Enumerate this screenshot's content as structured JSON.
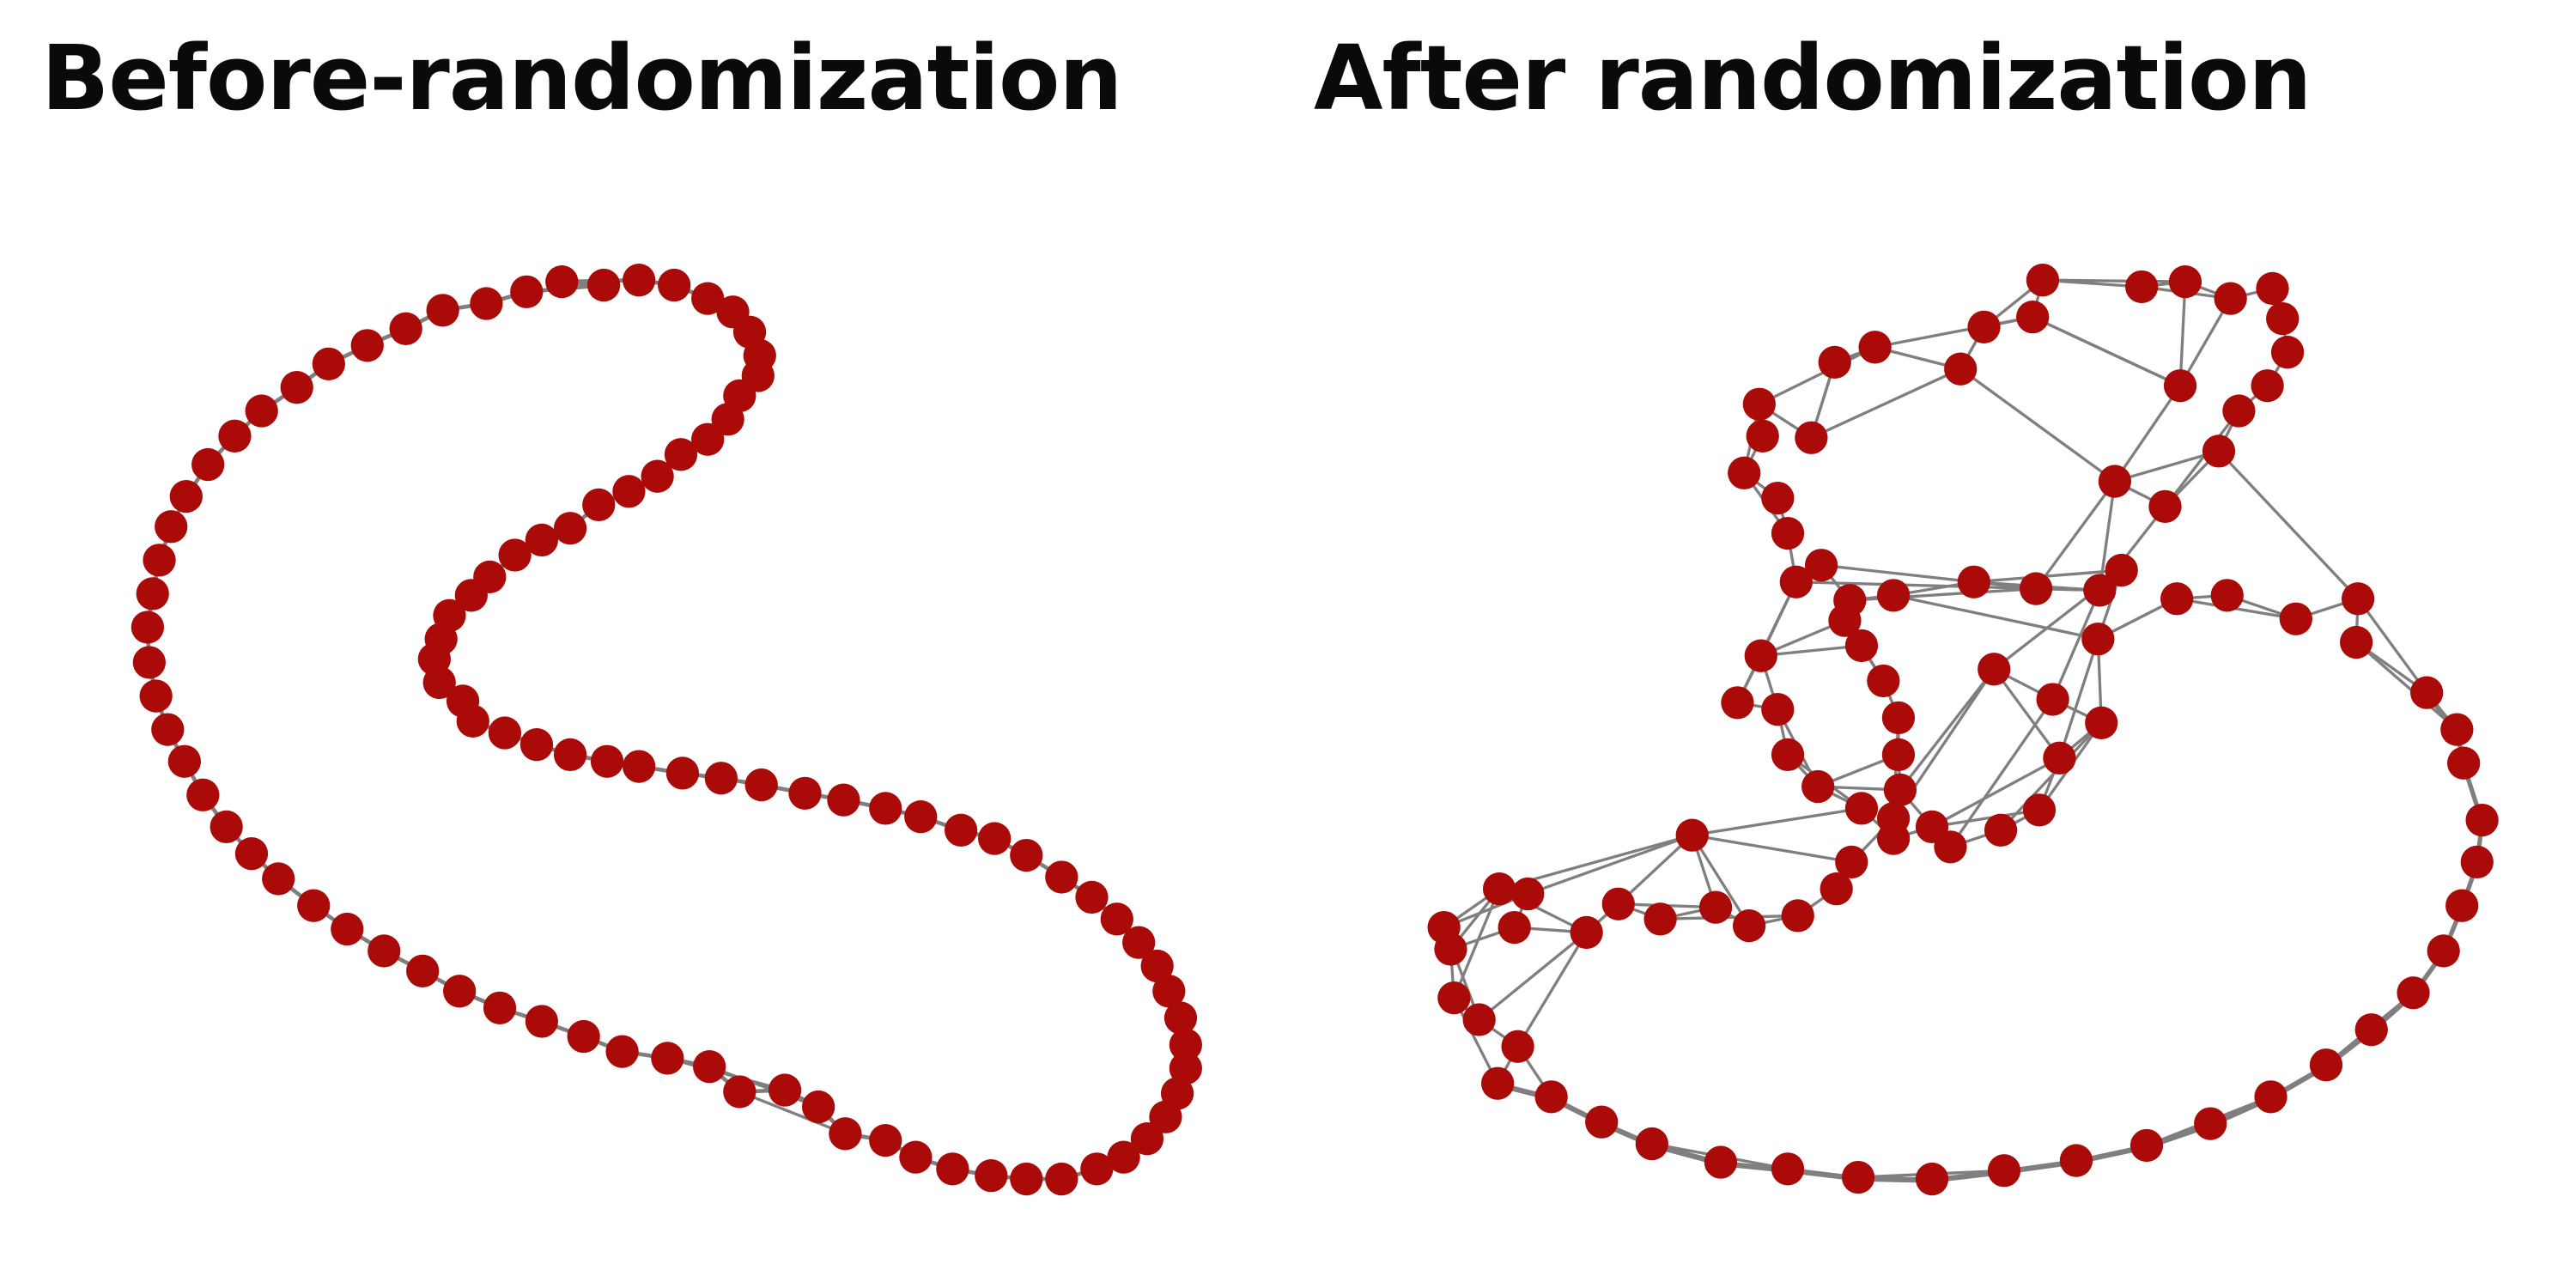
{
  "panels": {
    "left": {
      "title": "Before-randomization"
    },
    "right": {
      "title": "After randomization"
    }
  },
  "colors": {
    "node": "#aa0a08",
    "edge": "#7f7f7f",
    "title": "#0a0a0a",
    "background": "#ffffff"
  }
}
